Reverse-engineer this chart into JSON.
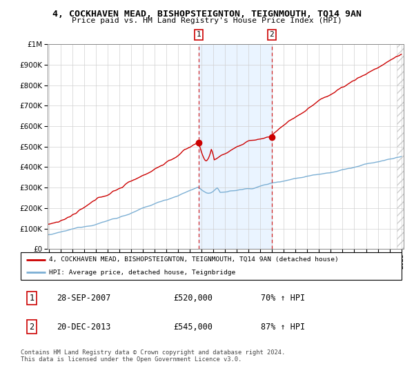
{
  "title": "4, COCKHAVEN MEAD, BISHOPSTEIGNTON, TEIGNMOUTH, TQ14 9AN",
  "subtitle": "Price paid vs. HM Land Registry's House Price Index (HPI)",
  "legend_line1": "4, COCKHAVEN MEAD, BISHOPSTEIGNTON, TEIGNMOUTH, TQ14 9AN (detached house)",
  "legend_line2": "HPI: Average price, detached house, Teignbridge",
  "sale1_date": "28-SEP-2007",
  "sale1_price": "£520,000",
  "sale1_hpi": "70% ↑ HPI",
  "sale2_date": "20-DEC-2013",
  "sale2_price": "£545,000",
  "sale2_hpi": "87% ↑ HPI",
  "footer": "Contains HM Land Registry data © Crown copyright and database right 2024.\nThis data is licensed under the Open Government Licence v3.0.",
  "red_color": "#cc0000",
  "blue_color": "#7bafd4",
  "bg_highlight": "#ddeeff",
  "sale1_year": 2007.75,
  "sale1_value": 520000,
  "sale2_year": 2013.97,
  "sale2_value": 545000,
  "xmin": 1995,
  "xmax": 2025,
  "ymin": 0,
  "ymax": 1000000
}
